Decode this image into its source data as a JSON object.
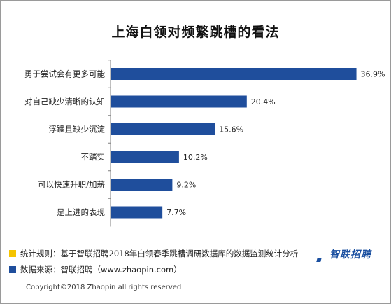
{
  "chart_data": {
    "type": "bar",
    "orientation": "horizontal",
    "title": "上海白领对频繁跳槽的看法",
    "categories": [
      "勇于尝试会有更多可能",
      "对自己缺少清晰的认知",
      "浮躁且缺少沉淀",
      "不踏实",
      "可以快速升职/加薪",
      "是上进的表现"
    ],
    "values": [
      36.9,
      20.4,
      15.6,
      10.2,
      9.2,
      7.7
    ],
    "value_labels": [
      "36.9%",
      "20.4%",
      "15.6%",
      "10.2%",
      "9.2%",
      "7.7%"
    ],
    "xlim": [
      0,
      40
    ],
    "bar_color": "#1f4e9c",
    "grid": false
  },
  "footer": {
    "note_rule": "统计规则：基于智联招聘2018年白领春季跳槽调研数据库的数据监测统计分析",
    "note_source": "数据来源：智联招聘（www.zhaopin.com）",
    "copyright": "Copyright©2018 Zhaopin all rights reserved",
    "rule_color": "#f5c400",
    "source_color": "#1f4e9c"
  },
  "logo": {
    "text": "智联招聘",
    "color": "#1a4fa0"
  }
}
